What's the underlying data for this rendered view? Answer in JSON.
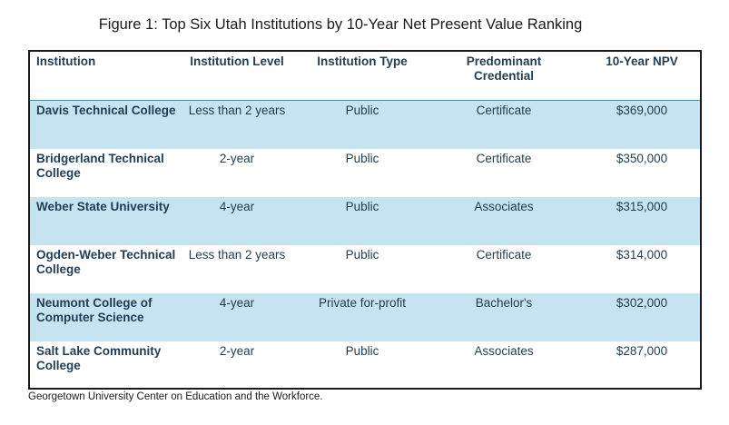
{
  "title": "Figure 1: Top Six Utah Institutions by 10-Year Net Present Value Ranking",
  "headers": {
    "institution": "Institution",
    "level": "Institution Level",
    "type": "Institution Type",
    "credential": "Predominant Credential",
    "npv": "10-Year NPV"
  },
  "rows": [
    {
      "institution": "Davis Technical College",
      "level": "Less than 2 years",
      "type": "Public",
      "credential": "Certificate",
      "npv": "$369,000"
    },
    {
      "institution": "Bridgerland Technical College",
      "level": "2-year",
      "type": "Public",
      "credential": "Certificate",
      "npv": "$350,000"
    },
    {
      "institution": "Weber State University",
      "level": "4-year",
      "type": "Public",
      "credential": "Associates",
      "npv": "$315,000"
    },
    {
      "institution": "Ogden-Weber Technical College",
      "level": "Less than 2 years",
      "type": "Public",
      "credential": "Certificate",
      "npv": "$314,000"
    },
    {
      "institution": "Neumont College of Computer Science",
      "level": "4-year",
      "type": "Private for-profit",
      "credential": "Bachelor's",
      "npv": "$302,000"
    },
    {
      "institution": "Salt Lake Community College",
      "level": "2-year",
      "type": "Public",
      "credential": "Associates",
      "npv": "$287,000"
    }
  ],
  "source": "Georgetown University Center on Education and the Workforce.",
  "colors": {
    "row_shade": "#c5e3f0",
    "text": "#1f3d55",
    "border": "#1a1a1a"
  }
}
